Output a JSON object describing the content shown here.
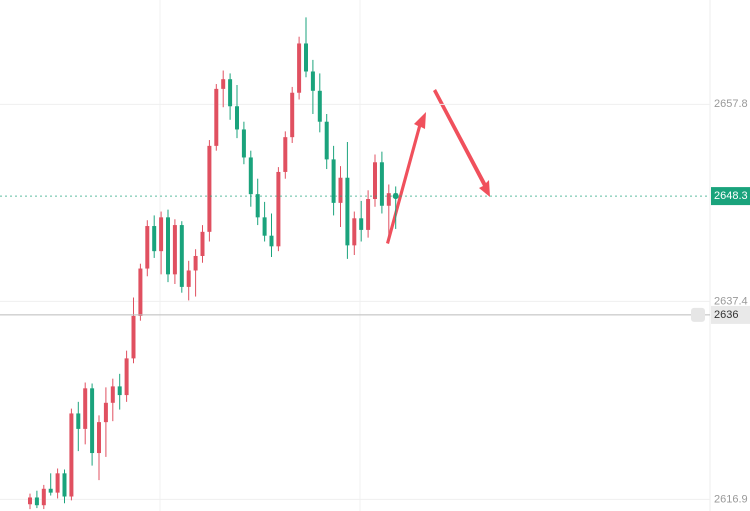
{
  "chart_data": {
    "type": "candlestick",
    "up_color": "#e05060",
    "down_color": "#1aa37c",
    "ylim": [
      2615.7,
      2668.6
    ],
    "yticks": [
      2616.9,
      2637.4,
      2657.8
    ],
    "grid": true,
    "last_price": 2648.3,
    "last_price_color": "#1aa37c",
    "alert_line": 2636.0,
    "open": [
      2616.4,
      2617.1,
      2616.3,
      2618.0,
      2617.6,
      2619.6,
      2617.2,
      2625.8,
      2624.2,
      2628.4,
      2621.7,
      2624.9,
      2626.9,
      2628.6,
      2627.7,
      2631.5,
      2635.9,
      2640.8,
      2645.2,
      2642.6,
      2646.1,
      2640.2,
      2645.3,
      2638.9,
      2640.6,
      2642.1,
      2644.6,
      2653.5,
      2659.4,
      2660.4,
      2657.6,
      2655.2,
      2652.3,
      2648.5,
      2646.1,
      2644.2,
      2643.1,
      2650.8,
      2654.4,
      2659.0,
      2664.1,
      2661.2,
      2659.2,
      2656.0,
      2652.1,
      2647.6,
      2650.2,
      2643.2,
      2646.0,
      2644.8,
      2648.0,
      2651.8,
      2647.3,
      2648.6
    ],
    "high": [
      2617.5,
      2617.8,
      2618.4,
      2619.6,
      2620.1,
      2620.0,
      2626.3,
      2627.0,
      2629.0,
      2628.9,
      2625.6,
      2628.5,
      2629.4,
      2629.9,
      2632.3,
      2637.8,
      2641.3,
      2645.8,
      2646.3,
      2646.7,
      2646.9,
      2645.9,
      2645.7,
      2641.6,
      2642.8,
      2645.3,
      2654.1,
      2659.9,
      2661.3,
      2661.0,
      2659.8,
      2656.0,
      2653.0,
      2650.1,
      2647.7,
      2646.5,
      2651.3,
      2655.0,
      2659.6,
      2664.8,
      2666.8,
      2662.4,
      2661.0,
      2656.8,
      2653.5,
      2651.4,
      2653.9,
      2646.7,
      2647.8,
      2648.9,
      2652.6,
      2652.9,
      2649.5,
      2649.3
    ],
    "low": [
      2615.9,
      2616.0,
      2615.9,
      2617.3,
      2617.0,
      2616.5,
      2616.8,
      2621.9,
      2622.6,
      2620.4,
      2618.9,
      2621.3,
      2625.0,
      2626.2,
      2627.0,
      2631.0,
      2635.4,
      2640.0,
      2641.9,
      2640.2,
      2639.4,
      2639.2,
      2638.3,
      2637.5,
      2637.9,
      2641.4,
      2643.6,
      2653.0,
      2657.5,
      2656.2,
      2654.3,
      2651.6,
      2647.2,
      2645.3,
      2643.6,
      2642.0,
      2642.6,
      2650.1,
      2653.8,
      2658.3,
      2660.6,
      2656.8,
      2654.9,
      2651.1,
      2646.3,
      2645.1,
      2641.8,
      2642.2,
      2643.6,
      2644.0,
      2647.2,
      2646.5,
      2643.6,
      2644.9
    ],
    "close": [
      2617.1,
      2616.3,
      2618.0,
      2617.6,
      2619.6,
      2617.2,
      2625.8,
      2624.2,
      2628.4,
      2621.7,
      2624.9,
      2626.9,
      2628.6,
      2627.7,
      2631.5,
      2635.9,
      2640.8,
      2645.2,
      2642.6,
      2646.1,
      2640.2,
      2645.3,
      2638.9,
      2640.6,
      2642.1,
      2644.6,
      2653.5,
      2659.4,
      2660.4,
      2657.6,
      2655.2,
      2652.3,
      2648.5,
      2646.1,
      2644.2,
      2643.1,
      2650.8,
      2654.4,
      2659.0,
      2664.1,
      2661.2,
      2659.2,
      2656.0,
      2652.1,
      2647.6,
      2650.2,
      2643.2,
      2646.0,
      2644.8,
      2648.0,
      2651.8,
      2647.3,
      2648.6,
      2648.3
    ]
  }
}
